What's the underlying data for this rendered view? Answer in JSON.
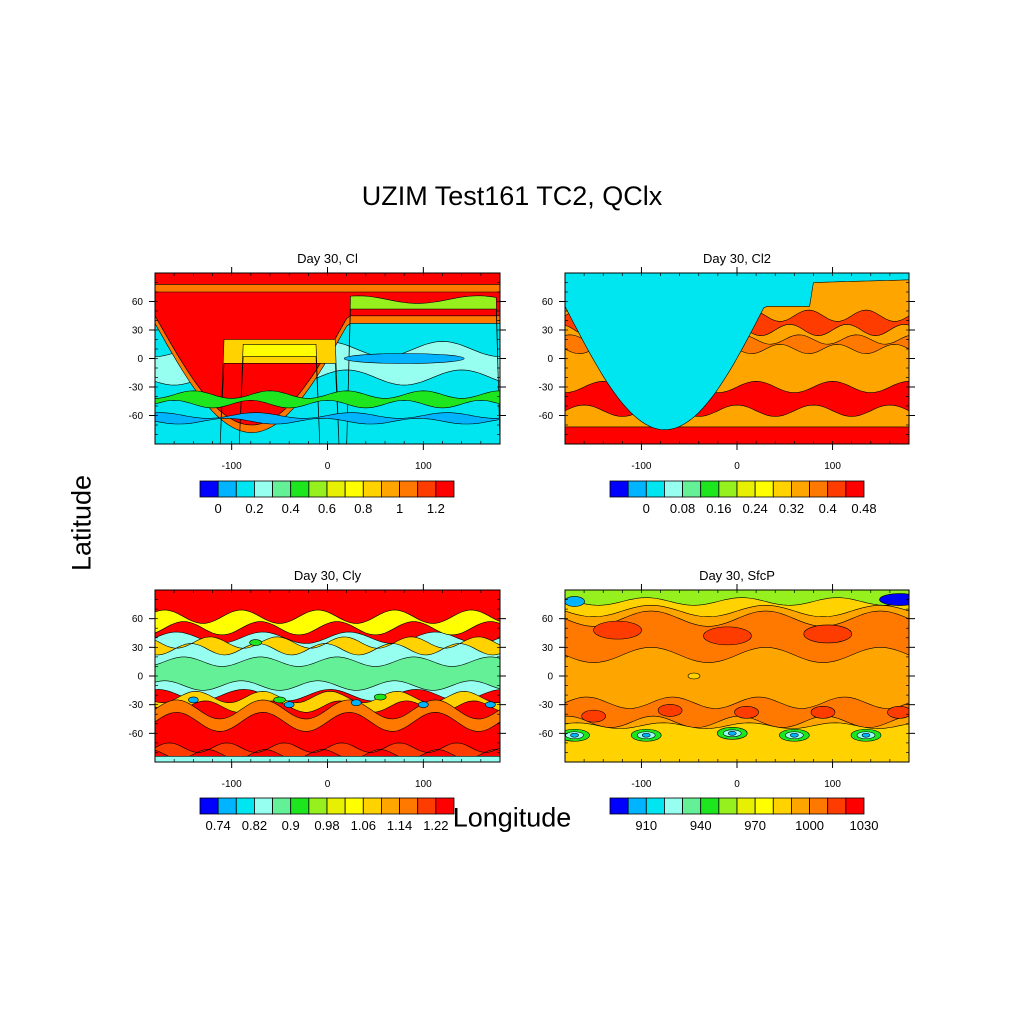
{
  "title": "UZIM Test161 TC2, QClx",
  "ylabel": "Latitude",
  "xlabel": "Longitude",
  "chart_data": [
    {
      "type": "heatmap",
      "title": "Day 30, Cl",
      "x_ticks": [
        "-100",
        "0",
        "100"
      ],
      "y_ticks": [
        "60",
        "30",
        "0",
        "-30",
        "-60"
      ],
      "xlim": [
        -180,
        180
      ],
      "ylim": [
        -90,
        90
      ],
      "colorbar_labels": [
        "0",
        "0.2",
        "0.4",
        "0.6",
        "0.8",
        "1",
        "1.2"
      ],
      "colors": [
        "#0000ff",
        "#00b4ff",
        "#00e6f0",
        "#96fff0",
        "#64f096",
        "#1ee61e",
        "#96f01e",
        "#e6f000",
        "#ffff00",
        "#ffd200",
        "#ffa500",
        "#ff7800",
        "#ff3c00",
        "#ff0000"
      ]
    },
    {
      "type": "heatmap",
      "title": "Day 30, Cl2",
      "x_ticks": [
        "-100",
        "0",
        "100"
      ],
      "y_ticks": [
        "60",
        "30",
        "0",
        "-30",
        "-60"
      ],
      "xlim": [
        -180,
        180
      ],
      "ylim": [
        -90,
        90
      ],
      "colorbar_labels": [
        "0",
        "0.08",
        "0.16",
        "0.24",
        "0.32",
        "0.4",
        "0.48"
      ],
      "colors": [
        "#0000ff",
        "#00b4ff",
        "#00e6f0",
        "#96fff0",
        "#64f096",
        "#1ee61e",
        "#96f01e",
        "#e6f000",
        "#ffff00",
        "#ffd200",
        "#ffa500",
        "#ff7800",
        "#ff3c00",
        "#ff0000"
      ]
    },
    {
      "type": "heatmap",
      "title": "Day 30, Cly",
      "x_ticks": [
        "-100",
        "0",
        "100"
      ],
      "y_ticks": [
        "60",
        "30",
        "0",
        "-30",
        "-60"
      ],
      "xlim": [
        -180,
        180
      ],
      "ylim": [
        -90,
        90
      ],
      "colorbar_labels": [
        "0.74",
        "0.82",
        "0.9",
        "0.98",
        "1.06",
        "1.14",
        "1.22"
      ],
      "colors": [
        "#0000ff",
        "#00b4ff",
        "#00e6f0",
        "#96fff0",
        "#64f096",
        "#1ee61e",
        "#96f01e",
        "#e6f000",
        "#ffff00",
        "#ffd200",
        "#ffa500",
        "#ff7800",
        "#ff3c00",
        "#ff0000"
      ]
    },
    {
      "type": "heatmap",
      "title": "Day 30, SfcP",
      "x_ticks": [
        "-100",
        "0",
        "100"
      ],
      "y_ticks": [
        "60",
        "30",
        "0",
        "-30",
        "-60"
      ],
      "xlim": [
        -180,
        180
      ],
      "ylim": [
        -90,
        90
      ],
      "colorbar_labels": [
        "910",
        "940",
        "970",
        "1000",
        "1030"
      ],
      "colors": [
        "#0000ff",
        "#00b4ff",
        "#00e6f0",
        "#96fff0",
        "#64f096",
        "#1ee61e",
        "#96f01e",
        "#e6f000",
        "#ffff00",
        "#ffd200",
        "#ffa500",
        "#ff7800",
        "#ff3c00",
        "#ff0000"
      ]
    }
  ]
}
